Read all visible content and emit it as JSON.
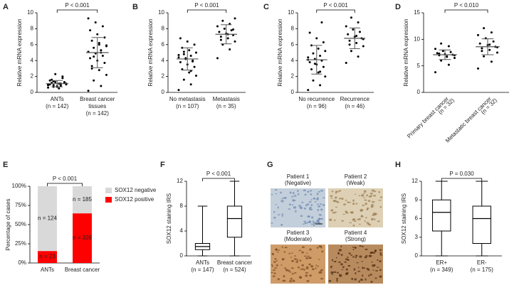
{
  "chart_data": [
    {
      "type": "dotplot",
      "panel_label": "A",
      "ylabel": "Relative mRNA expression",
      "ylim": [
        0,
        10
      ],
      "yticks": [
        0,
        2,
        4,
        6,
        8,
        10
      ],
      "significance": "P < 0.001",
      "categories": [
        [
          "ANTs",
          "(n = 142)"
        ],
        [
          "Breast cancer",
          "tissues",
          "(n = 142)"
        ]
      ],
      "values": [
        [
          0.6,
          0.8,
          0.9,
          1.0,
          1.1,
          1.2,
          1.3,
          0.7,
          1.5,
          1.8,
          2.3,
          1.0,
          0.9,
          1.4,
          1.1,
          0.5,
          1.6,
          1.2,
          0.8,
          1.0,
          2.0,
          1.3,
          0.9,
          1.1,
          0.7
        ],
        [
          0.2,
          0.8,
          1.5,
          2.2,
          2.8,
          3.3,
          3.7,
          4.0,
          4.3,
          4.6,
          4.9,
          5.1,
          5.3,
          5.6,
          5.9,
          6.2,
          6.5,
          6.9,
          7.3,
          7.8,
          8.3,
          8.8,
          9.3,
          5.0,
          4.5,
          5.8,
          6.0,
          3.0
        ]
      ],
      "means": [
        1.1,
        5.0
      ],
      "sds": [
        0.4,
        1.9
      ],
      "color": "#000000"
    },
    {
      "type": "dotplot",
      "panel_label": "B",
      "ylabel": "Relative mRNA expression",
      "ylim": [
        0,
        10
      ],
      "yticks": [
        0,
        2,
        4,
        6,
        8,
        10
      ],
      "significance": "P < 0.001",
      "categories": [
        [
          "No metastasis",
          "(n = 107)"
        ],
        [
          "Metastasis",
          "(n = 35)"
        ]
      ],
      "values": [
        [
          0.3,
          1.0,
          1.6,
          2.1,
          2.5,
          2.9,
          3.2,
          3.5,
          3.8,
          4.0,
          4.2,
          4.4,
          4.6,
          4.8,
          5.0,
          5.3,
          5.6,
          6.0,
          6.4,
          6.8,
          3.9,
          4.3,
          4.7,
          2.7,
          5.1
        ],
        [
          4.3,
          5.4,
          6.0,
          6.4,
          6.8,
          7.0,
          7.2,
          7.4,
          7.6,
          7.8,
          8.0,
          8.3,
          8.6,
          9.0,
          9.3,
          7.3,
          6.6,
          7.9
        ]
      ],
      "means": [
        4.2,
        7.3
      ],
      "sds": [
        1.4,
        1.2
      ],
      "color": "#000000"
    },
    {
      "type": "dotplot",
      "panel_label": "C",
      "ylabel": "Relative mRNA expression",
      "ylim": [
        0,
        10
      ],
      "yticks": [
        0,
        2,
        4,
        6,
        8,
        10
      ],
      "significance": "P < 0.001",
      "categories": [
        [
          "No recurrence",
          "(n = 96)"
        ],
        [
          "Recurrence",
          "(n = 46)"
        ]
      ],
      "values": [
        [
          0.3,
          0.9,
          1.5,
          2.0,
          2.5,
          2.9,
          3.2,
          3.5,
          3.8,
          4.0,
          4.2,
          4.4,
          4.6,
          4.9,
          5.2,
          5.5,
          5.9,
          6.3,
          6.8,
          7.5,
          8.8,
          3.6,
          4.1,
          2.6
        ],
        [
          3.7,
          4.5,
          5.2,
          5.8,
          6.2,
          6.5,
          6.8,
          7.0,
          7.3,
          7.6,
          7.9,
          8.3,
          8.8,
          9.4,
          6.7,
          7.1,
          6.0
        ]
      ],
      "means": [
        4.1,
        6.8
      ],
      "sds": [
        1.8,
        1.3
      ],
      "color": "#000000"
    },
    {
      "type": "dotplot",
      "panel_label": "D",
      "ylabel": "Relative mRNA expression",
      "ylim": [
        0,
        15
      ],
      "yticks": [
        0,
        5,
        10,
        15
      ],
      "significance": "P < 0.010",
      "label_rotation": -45,
      "categories": [
        [
          "Primary breast cancer",
          "(n = 32)"
        ],
        [
          "Metastatic breast cancer",
          "(n = 32)"
        ]
      ],
      "values": [
        [
          3.8,
          5.2,
          6.0,
          6.5,
          6.8,
          7.0,
          7.1,
          7.2,
          7.4,
          7.6,
          7.8,
          8.2,
          8.7,
          9.2,
          7.0,
          6.7,
          7.3
        ],
        [
          4.5,
          5.8,
          6.8,
          7.5,
          8.0,
          8.3,
          8.6,
          8.9,
          9.2,
          9.6,
          10.2,
          10.8,
          11.3,
          12.1,
          8.5,
          9.0,
          7.8
        ]
      ],
      "means": [
        7.1,
        8.6
      ],
      "sds": [
        0.9,
        1.5
      ],
      "color": "#000000"
    },
    {
      "type": "stacked",
      "panel_label": "E",
      "ylabel": "Percentage of cases",
      "ylim": [
        0,
        100
      ],
      "yticks": [
        {
          "value": 0,
          "label": "0%"
        },
        {
          "value": 25,
          "label": "25%"
        },
        {
          "value": 50,
          "label": "50%"
        },
        {
          "value": 75,
          "label": "75%"
        },
        {
          "value": 100,
          "label": "100%"
        }
      ],
      "significance": "P < 0.001",
      "categories": [
        [
          "ANTs"
        ],
        [
          "Breast cancer"
        ]
      ],
      "series": [
        {
          "name": "SOX12 positive",
          "color": "#ff0000",
          "values": [
            15.6,
            64.7
          ],
          "segment_labels": [
            "n = 23",
            "n = 339"
          ]
        },
        {
          "name": "SOX12 negative",
          "color": "#d9d9d9",
          "values": [
            84.4,
            35.3
          ],
          "segment_labels": [
            "n = 124",
            "n = 185"
          ]
        }
      ]
    },
    {
      "type": "box",
      "panel_label": "F",
      "ylabel": "SOX12 staining IRS",
      "ylim": [
        0,
        12
      ],
      "yticks": [
        0,
        4,
        8,
        12
      ],
      "significance": "P < 0.001",
      "categories": [
        [
          "ANTs",
          "(n = 147)"
        ],
        [
          "Breast cancer",
          "(n = 524)"
        ]
      ],
      "boxes": [
        {
          "min": 0,
          "q1": 1,
          "median": 1.5,
          "q3": 2,
          "max": 8
        },
        {
          "min": 0,
          "q1": 3,
          "median": 6,
          "q3": 8,
          "max": 12
        }
      ]
    },
    {
      "type": "images",
      "panel_label": "G",
      "tiles": [
        {
          "lines": [
            "Patient 1",
            "(Negative)"
          ],
          "color": "#c3cfdb"
        },
        {
          "lines": [
            "Patient 2",
            "(Weak)"
          ],
          "color": "#ddd0b4"
        },
        {
          "lines": [
            "Patient 3",
            "(Moderate)"
          ],
          "color": "#cf9c68"
        },
        {
          "lines": [
            "Patient 4",
            "(Strong)"
          ],
          "color": "#b88b5e"
        }
      ]
    },
    {
      "type": "box",
      "panel_label": "H",
      "ylabel": "SOX12 staining IRS",
      "ylim": [
        0,
        12
      ],
      "yticks": [
        0,
        3,
        6,
        9,
        12
      ],
      "significance": "P = 0.030",
      "categories": [
        [
          "ER+",
          "(n = 349)"
        ],
        [
          "ER-",
          "(n = 175)"
        ]
      ],
      "boxes": [
        {
          "min": 0,
          "q1": 4,
          "median": 7,
          "q3": 9,
          "max": 12
        },
        {
          "min": 0,
          "q1": 2,
          "median": 6,
          "q3": 8,
          "max": 12
        }
      ]
    }
  ]
}
